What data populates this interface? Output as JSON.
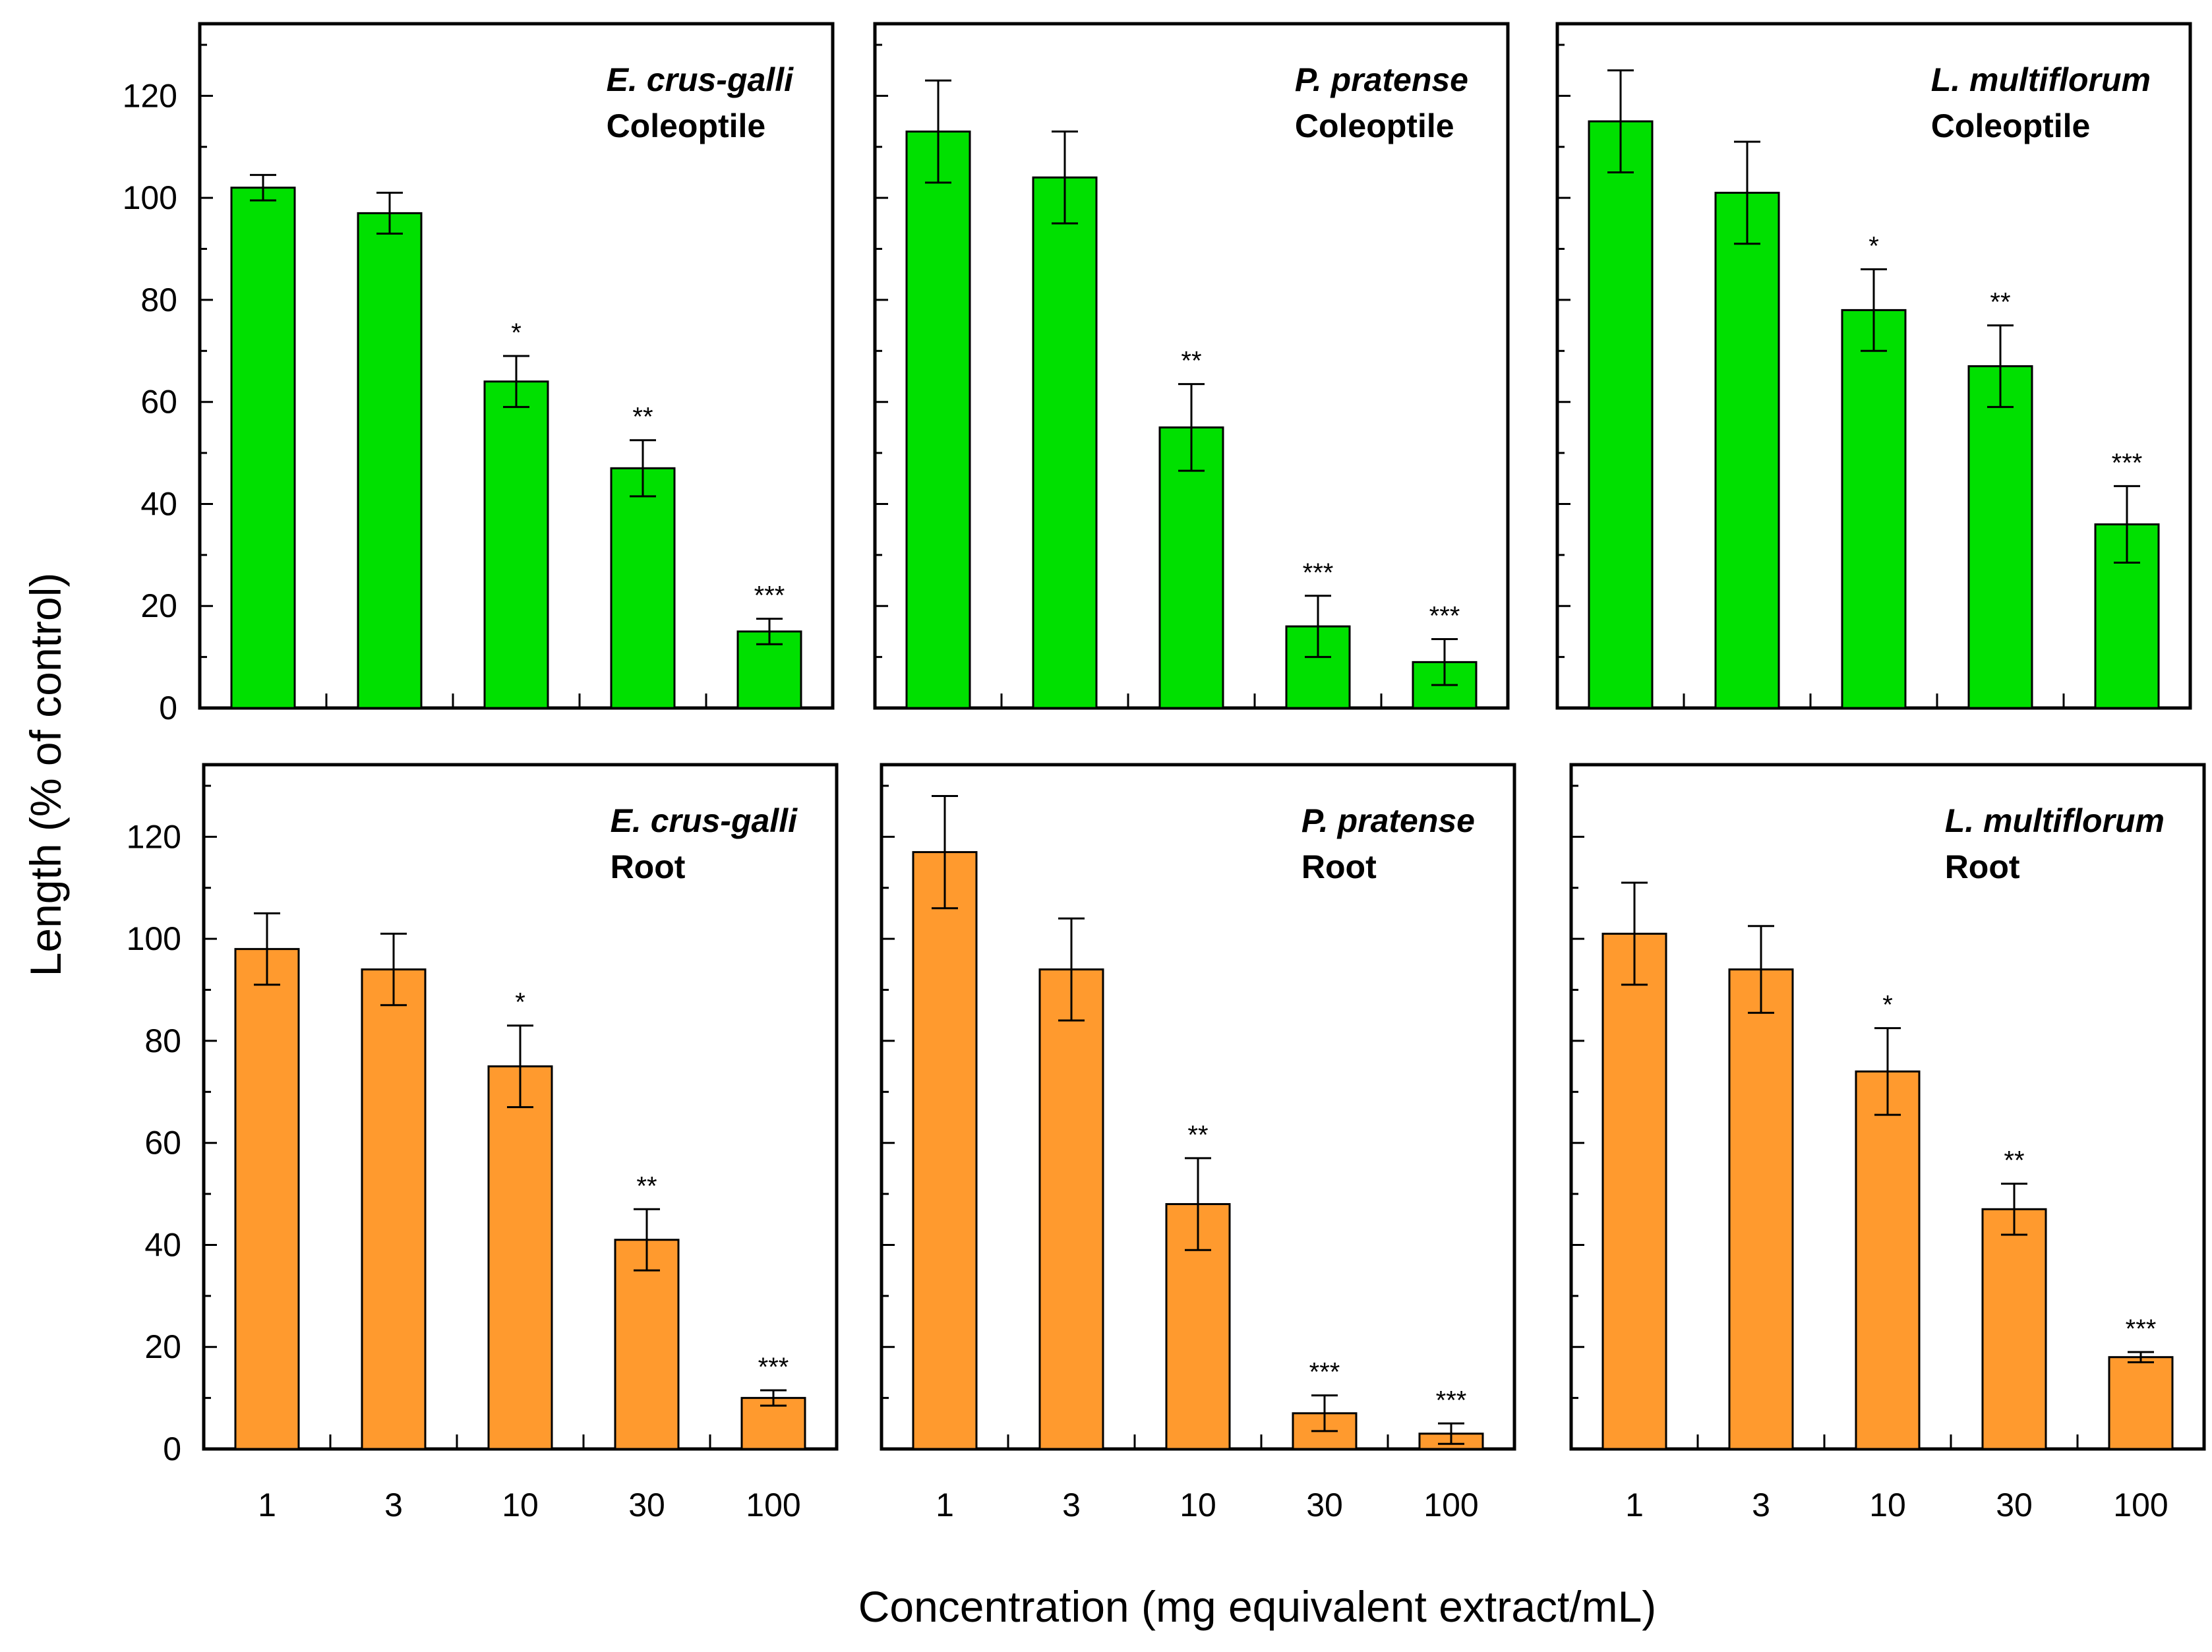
{
  "chart_data": {
    "type": "bar",
    "ylabel": "Length  (% of control)",
    "xlabel": "Concentration (mg equivalent extract/mL)",
    "categories": [
      "1",
      "3",
      "10",
      "30",
      "100"
    ],
    "ylim": [
      0,
      130
    ],
    "yticks": [
      "0",
      "20",
      "40",
      "60",
      "80",
      "100",
      "120"
    ],
    "colors": {
      "coleoptile": "#00e000",
      "root": "#ff9a2e",
      "axis": "#000000"
    },
    "panels": [
      {
        "id": "ecg-coleoptile",
        "species": "E. crus-galli",
        "organ": "Coleoptile",
        "color_key": "coleoptile",
        "values": [
          102,
          97,
          64,
          47,
          15
        ],
        "errors": [
          2.5,
          4,
          5,
          5.5,
          2.5
        ],
        "significance": [
          "",
          "",
          "*",
          "**",
          "***"
        ]
      },
      {
        "id": "pp-coleoptile",
        "species": "P. pratense",
        "organ": "Coleoptile",
        "color_key": "coleoptile",
        "values": [
          113,
          104,
          55,
          16,
          9
        ],
        "errors": [
          10,
          9,
          8.5,
          6,
          4.5
        ],
        "significance": [
          "",
          "",
          "**",
          "***",
          "***"
        ]
      },
      {
        "id": "lm-coleoptile",
        "species": "L. multiflorum",
        "organ": "Coleoptile",
        "color_key": "coleoptile",
        "values": [
          115,
          101,
          78,
          67,
          36
        ],
        "errors": [
          10,
          10,
          8,
          8,
          7.5
        ],
        "significance": [
          "",
          "",
          "*",
          "**",
          "***"
        ]
      },
      {
        "id": "ecg-root",
        "species": "E. crus-galli",
        "organ": "Root",
        "color_key": "root",
        "values": [
          98,
          94,
          75,
          41,
          10
        ],
        "errors": [
          7,
          7,
          8,
          6,
          1.5
        ],
        "significance": [
          "",
          "",
          "*",
          "**",
          "***"
        ]
      },
      {
        "id": "pp-root",
        "species": "P. pratense",
        "organ": "Root",
        "color_key": "root",
        "values": [
          117,
          94,
          48,
          7,
          3
        ],
        "errors": [
          11,
          10,
          9,
          3.5,
          2
        ],
        "significance": [
          "",
          "",
          "**",
          "***",
          "***"
        ]
      },
      {
        "id": "lm-root",
        "species": "L. multiflorum",
        "organ": "Root",
        "color_key": "root",
        "values": [
          101,
          94,
          74,
          47,
          18
        ],
        "errors": [
          10,
          8.5,
          8.5,
          5,
          1
        ],
        "significance": [
          "",
          "",
          "*",
          "**",
          "***"
        ]
      }
    ]
  }
}
